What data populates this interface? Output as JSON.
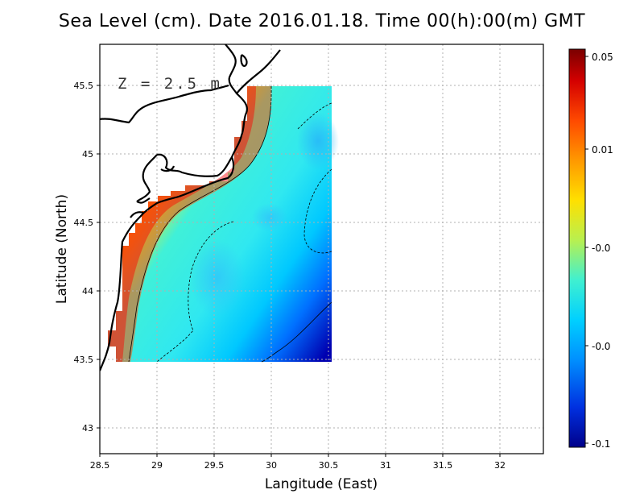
{
  "title": "Sea Level (cm). Date 2016.01.18. Time 00(h):00(m) GMT",
  "annotation": "Z = 2.5 m",
  "x_axis": {
    "label": "Langitude (East)",
    "ticks": [
      "28.5",
      "29",
      "29.5",
      "30",
      "30.5",
      "31",
      "31.5",
      "32"
    ],
    "range": [
      28.5,
      32.4
    ]
  },
  "y_axis": {
    "label": "Latitude (North)",
    "ticks": [
      "43",
      "43.5",
      "44",
      "44.5",
      "45",
      "45.5"
    ],
    "range": [
      42.8,
      45.8
    ]
  },
  "colorbar": {
    "ticks": [
      "0.05",
      "0.01",
      "-0.0",
      "-0.0",
      "-0.1"
    ],
    "colors": [
      "#7a0000",
      "#d40000",
      "#ff4a00",
      "#ff9900",
      "#ffe000",
      "#b8f050",
      "#40f0d0",
      "#00d0ff",
      "#0090ff",
      "#0030e0",
      "#00008a"
    ]
  },
  "data_extent": {
    "lon": [
      28.6,
      30.5
    ],
    "lat": [
      43.5,
      45.5
    ]
  },
  "grid": true
}
